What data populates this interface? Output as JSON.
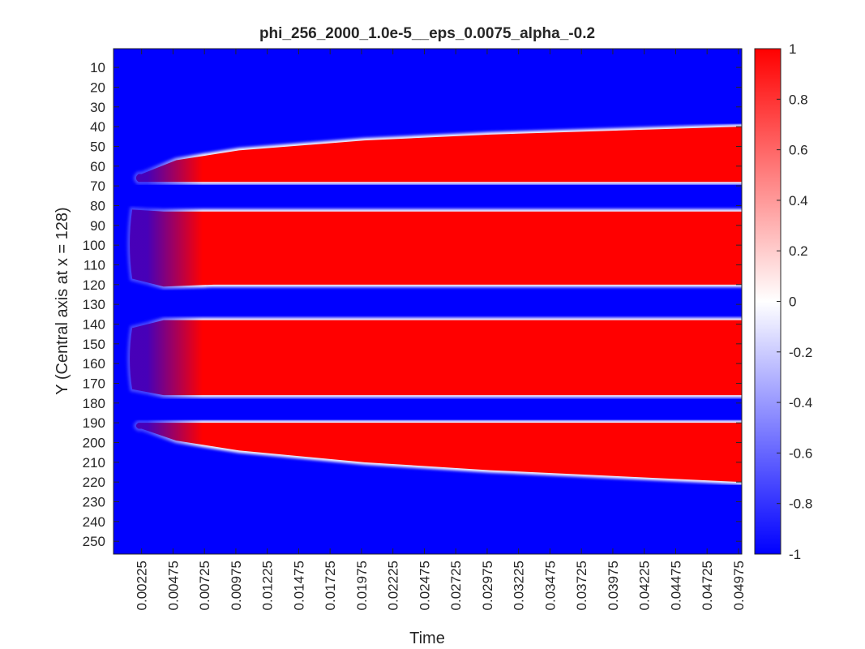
{
  "chart_data": {
    "type": "heatmap",
    "title": "phi_256_2000_1.0e-5__eps_0.0075_alpha_-0.2",
    "xlabel": "Time",
    "ylabel": "Y (Central axis at x = 128)",
    "x_ticks": [
      "0.00225",
      "0.00475",
      "0.00725",
      "0.00975",
      "0.01225",
      "0.01475",
      "0.01725",
      "0.01975",
      "0.02225",
      "0.02475",
      "0.02725",
      "0.02975",
      "0.03225",
      "0.03475",
      "0.03725",
      "0.03975",
      "0.04225",
      "0.04475",
      "0.04725",
      "0.04975"
    ],
    "xlim": [
      1.25e-05,
      0.0500125
    ],
    "y_ticks": [
      10,
      20,
      30,
      40,
      50,
      60,
      70,
      80,
      90,
      100,
      110,
      120,
      130,
      140,
      150,
      160,
      170,
      180,
      190,
      200,
      210,
      220,
      230,
      240,
      250
    ],
    "ylim": [
      0.5,
      256.5
    ],
    "y_direction": "reverse",
    "colorbar": {
      "ticks": [
        "1",
        "0.8",
        "0.6",
        "0.4",
        "0.2",
        "0",
        "-0.2",
        "-0.4",
        "-0.6",
        "-0.8",
        "-1"
      ],
      "range": [
        -1,
        1
      ],
      "colormap": [
        "#0000ff",
        "#ffffff",
        "#ff0000"
      ]
    },
    "initial_value": -0.35,
    "background_value": -1,
    "band_value": 1,
    "bands": [
      {
        "top": [
          [
            0.00225,
            64
          ],
          [
            0.005,
            57
          ],
          [
            0.01,
            52
          ],
          [
            0.02,
            47
          ],
          [
            0.03,
            44
          ],
          [
            0.04,
            42
          ],
          [
            0.05,
            40
          ]
        ],
        "bottom": [
          [
            0.002,
            68
          ],
          [
            0.05,
            68
          ]
        ]
      },
      {
        "top": [
          [
            0.0015,
            82
          ],
          [
            0.004,
            83
          ],
          [
            0.05,
            83
          ]
        ],
        "bottom": [
          [
            0.0015,
            117
          ],
          [
            0.004,
            121
          ],
          [
            0.008,
            120
          ],
          [
            0.05,
            120
          ]
        ]
      },
      {
        "top": [
          [
            0.0015,
            142
          ],
          [
            0.004,
            138
          ],
          [
            0.05,
            138
          ]
        ],
        "bottom": [
          [
            0.0015,
            173
          ],
          [
            0.004,
            176
          ],
          [
            0.05,
            176
          ]
        ]
      },
      {
        "top": [
          [
            0.002,
            190
          ],
          [
            0.05,
            190
          ]
        ],
        "bottom": [
          [
            0.00225,
            193
          ],
          [
            0.005,
            199
          ],
          [
            0.01,
            204
          ],
          [
            0.02,
            210
          ],
          [
            0.03,
            214
          ],
          [
            0.04,
            217
          ],
          [
            0.05,
            220
          ]
        ]
      }
    ]
  }
}
